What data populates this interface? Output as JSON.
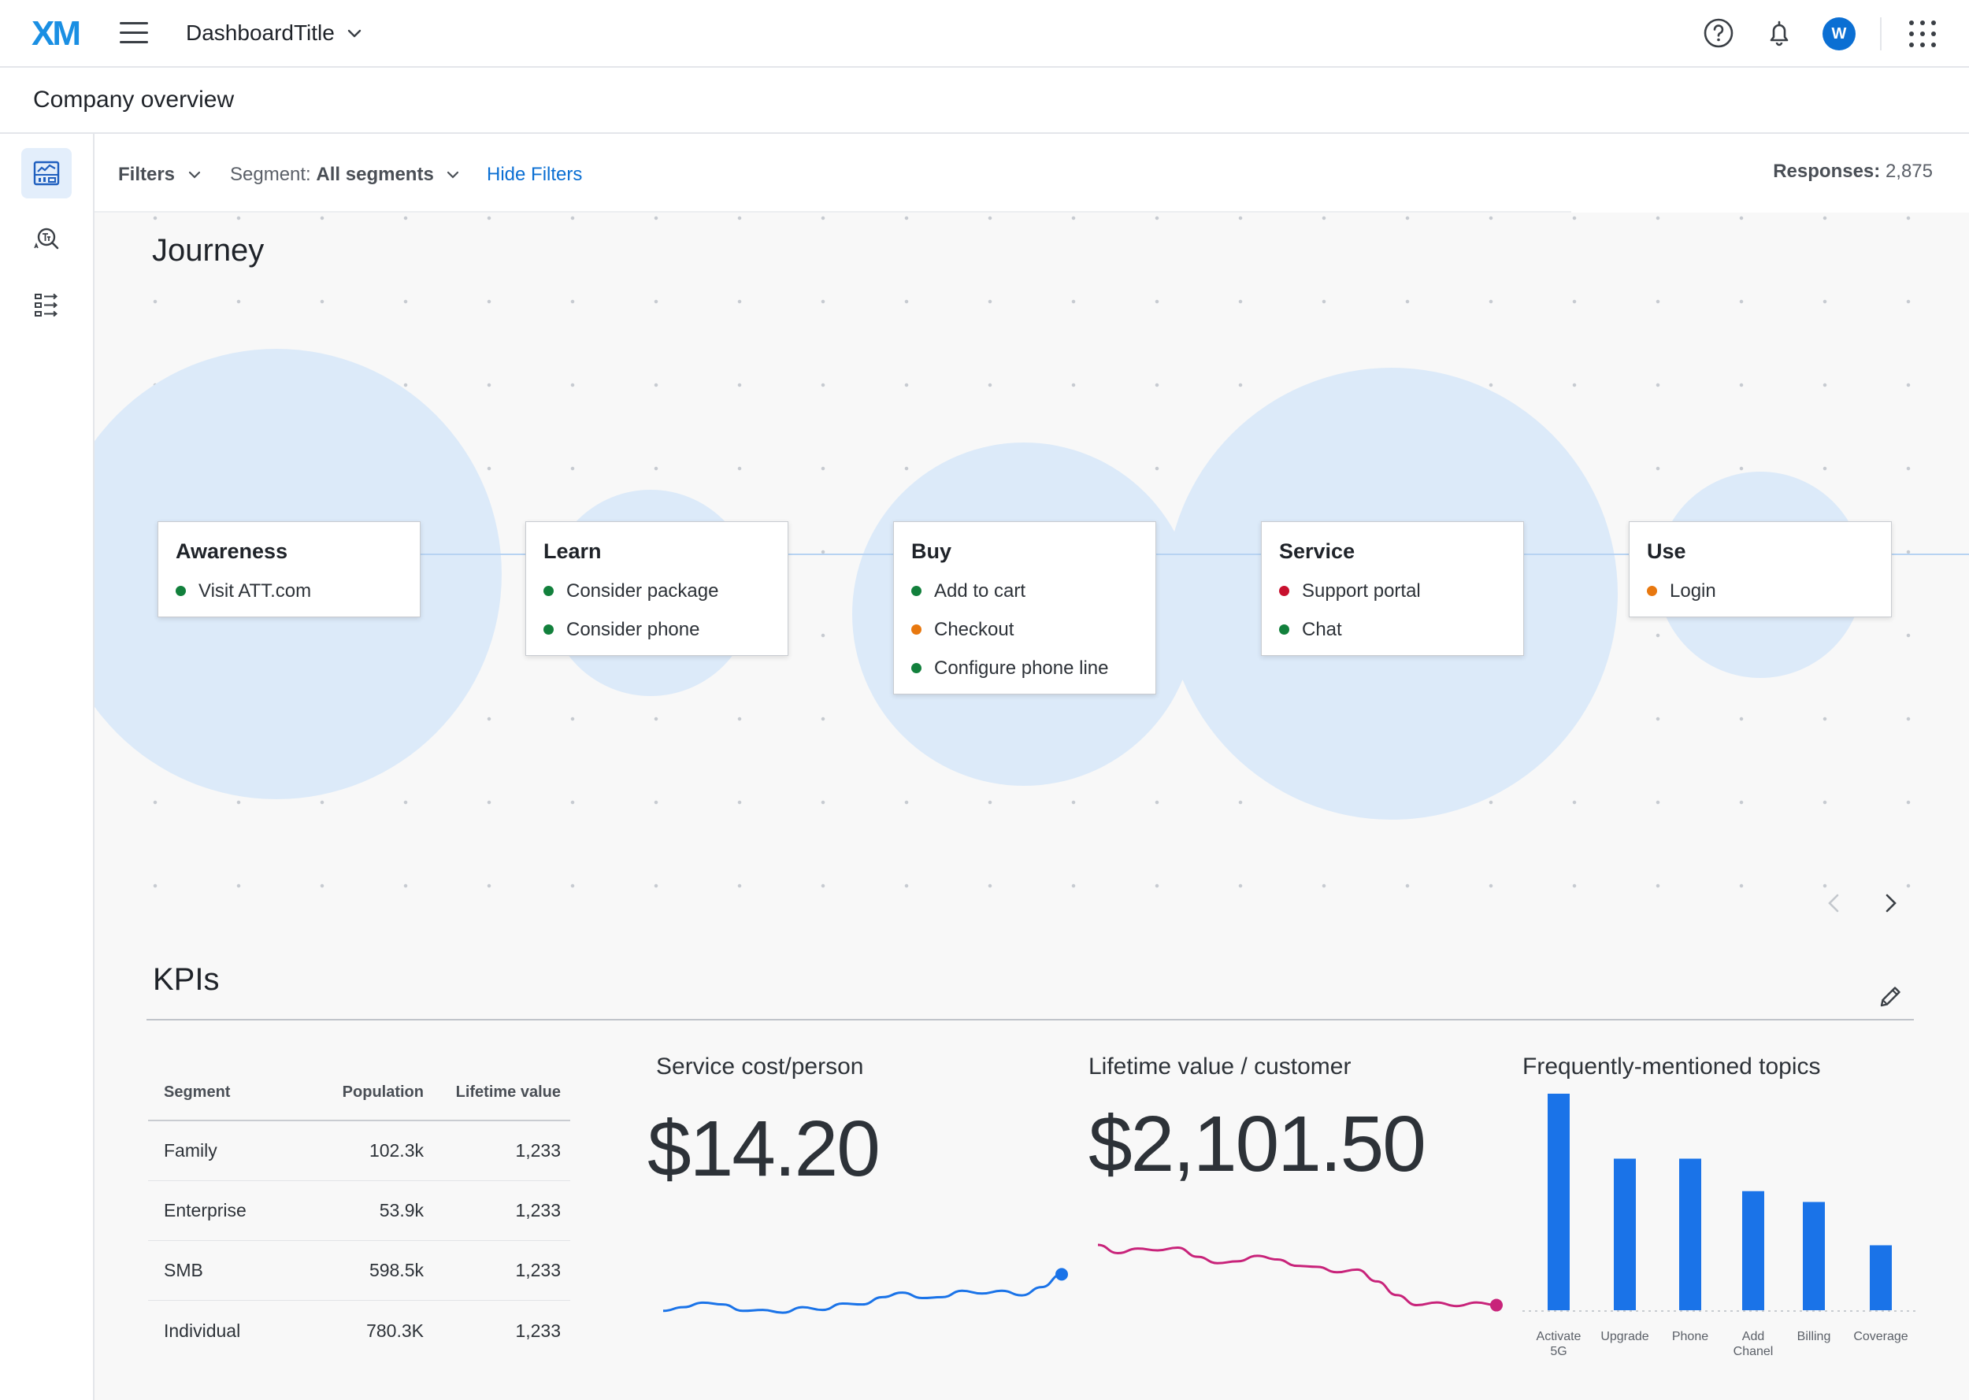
{
  "app": {
    "logo": "XM",
    "dashboard_title": "DashboardTitle",
    "avatar_initial": "W"
  },
  "page": {
    "title": "Company overview"
  },
  "filters": {
    "filters_label": "Filters",
    "segment_prefix": "Segment:",
    "segment_value": "All segments",
    "hide_filters": "Hide Filters",
    "responses_label": "Responses:",
    "responses_value": "2,875"
  },
  "journey": {
    "title": "Journey",
    "stages": [
      {
        "name": "Awareness",
        "items": [
          {
            "label": "Visit ATT.com",
            "status": "green"
          }
        ]
      },
      {
        "name": "Learn",
        "items": [
          {
            "label": "Consider package",
            "status": "green"
          },
          {
            "label": "Consider phone",
            "status": "green"
          }
        ]
      },
      {
        "name": "Buy",
        "items": [
          {
            "label": "Add to cart",
            "status": "green"
          },
          {
            "label": "Checkout",
            "status": "orange"
          },
          {
            "label": "Configure phone line",
            "status": "green"
          }
        ]
      },
      {
        "name": "Service",
        "items": [
          {
            "label": "Support portal",
            "status": "red"
          },
          {
            "label": "Chat",
            "status": "green"
          }
        ]
      },
      {
        "name": "Use",
        "items": [
          {
            "label": "Login",
            "status": "orange"
          }
        ]
      }
    ]
  },
  "kpis": {
    "title": "KPIs",
    "table": {
      "headers": [
        "Segment",
        "Population",
        "Lifetime value"
      ],
      "rows": [
        [
          "Family",
          "102.3k",
          "1,233"
        ],
        [
          "Enterprise",
          "53.9k",
          "1,233"
        ],
        [
          "SMB",
          "598.5k",
          "1,233"
        ],
        [
          "Individual",
          "780.3K",
          "1,233"
        ]
      ]
    },
    "service_cost": {
      "title": "Service cost/person",
      "value": "$14.20"
    },
    "lifetime_value": {
      "title": "Lifetime value / customer",
      "value": "$2,101.50"
    },
    "topics": {
      "title": "Frequently-mentioned topics"
    }
  },
  "colors": {
    "green": "#12803c",
    "orange": "#e8780f",
    "red": "#c8102e",
    "accent_blue": "#1a73e8",
    "magenta": "#c8237a"
  },
  "chart_data": [
    {
      "type": "line",
      "series": [
        {
          "values": [
            20,
            24,
            29,
            27,
            20,
            21,
            18,
            24,
            21,
            28,
            27,
            35,
            40,
            34,
            35,
            42,
            39,
            42,
            37,
            46,
            60
          ]
        }
      ]
    },
    {
      "type": "line",
      "series": [
        {
          "values": [
            75,
            66,
            71,
            69,
            72,
            62,
            55,
            57,
            63,
            59,
            52,
            51,
            45,
            48,
            35,
            20,
            9,
            12,
            8,
            12,
            9
          ]
        }
      ]
    },
    {
      "type": "bar",
      "categories": [
        "Activate 5G",
        "Upgrade",
        "Phone",
        "Add Chanel",
        "Billing",
        "Coverage"
      ],
      "values": [
        100,
        70,
        70,
        55,
        50,
        30
      ],
      "ylim": [
        0,
        100
      ]
    }
  ]
}
